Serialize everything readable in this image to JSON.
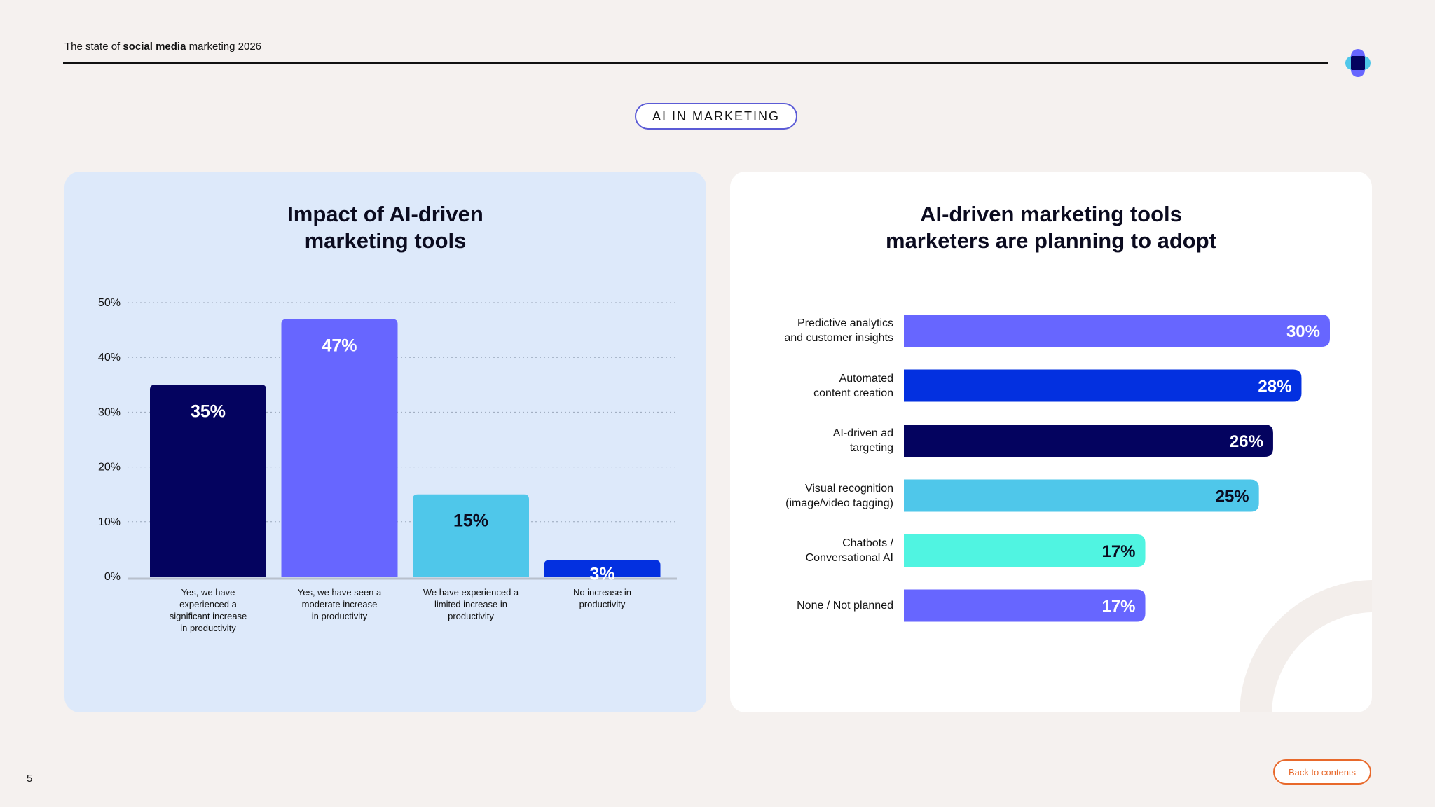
{
  "header": {
    "title_prefix": "The state of ",
    "title_bold": "social media",
    "title_suffix": " marketing 2026"
  },
  "section_label": "AI IN MARKETING",
  "page_number": "5",
  "back_button": "Back to contents",
  "colors": {
    "navy": "#04035f",
    "purple": "#6766ff",
    "sky": "#4fc7ea",
    "blue": "#0330e0",
    "aqua": "#50f4e1",
    "background": "#f5f1ef",
    "left_card": "#dde9fa",
    "accent_orange": "#e8692b"
  },
  "chart_data": [
    {
      "type": "bar",
      "title_lines": [
        "Impact of AI-driven",
        "marketing tools"
      ],
      "categories": [
        [
          "Yes, we have",
          "experienced a",
          "significant increase",
          "in productivity"
        ],
        [
          "Yes, we have seen a",
          "moderate increase",
          "in productivity"
        ],
        [
          "We have experienced a",
          "limited increase in",
          "productivity"
        ],
        [
          "No increase in",
          "productivity"
        ]
      ],
      "values": [
        35,
        47,
        15,
        3
      ],
      "value_labels": [
        "35%",
        "47%",
        "15%",
        "3%"
      ],
      "bar_colors": [
        "#04035f",
        "#6766ff",
        "#4fc7ea",
        "#0330e0"
      ],
      "label_colors": [
        "#ffffff",
        "#ffffff",
        "#0b0b1f",
        "#ffffff"
      ],
      "ylim": [
        0,
        50
      ],
      "yticks": [
        0,
        10,
        20,
        30,
        40,
        50
      ],
      "ytick_labels": [
        "0%",
        "10%",
        "20%",
        "30%",
        "40%",
        "50%"
      ],
      "grid": true
    },
    {
      "type": "bar",
      "orientation": "horizontal",
      "title_lines": [
        "AI-driven marketing tools",
        "marketers are planning to adopt"
      ],
      "categories": [
        [
          "Predictive analytics",
          "and customer insights"
        ],
        [
          "Automated",
          "content creation"
        ],
        [
          "AI-driven ad",
          "targeting"
        ],
        [
          "Visual recognition",
          "(image/video tagging)"
        ],
        [
          "Chatbots /",
          "Conversational AI"
        ],
        [
          "None / Not planned"
        ]
      ],
      "values": [
        30,
        28,
        26,
        25,
        17,
        17
      ],
      "value_labels": [
        "30%",
        "28%",
        "26%",
        "25%",
        "17%",
        "17%"
      ],
      "bar_colors": [
        "#6766ff",
        "#0330e0",
        "#04035f",
        "#4fc7ea",
        "#50f4e1",
        "#6766ff"
      ],
      "label_colors": [
        "#ffffff",
        "#ffffff",
        "#ffffff",
        "#0b0b1f",
        "#0b0b1f",
        "#ffffff"
      ]
    }
  ]
}
